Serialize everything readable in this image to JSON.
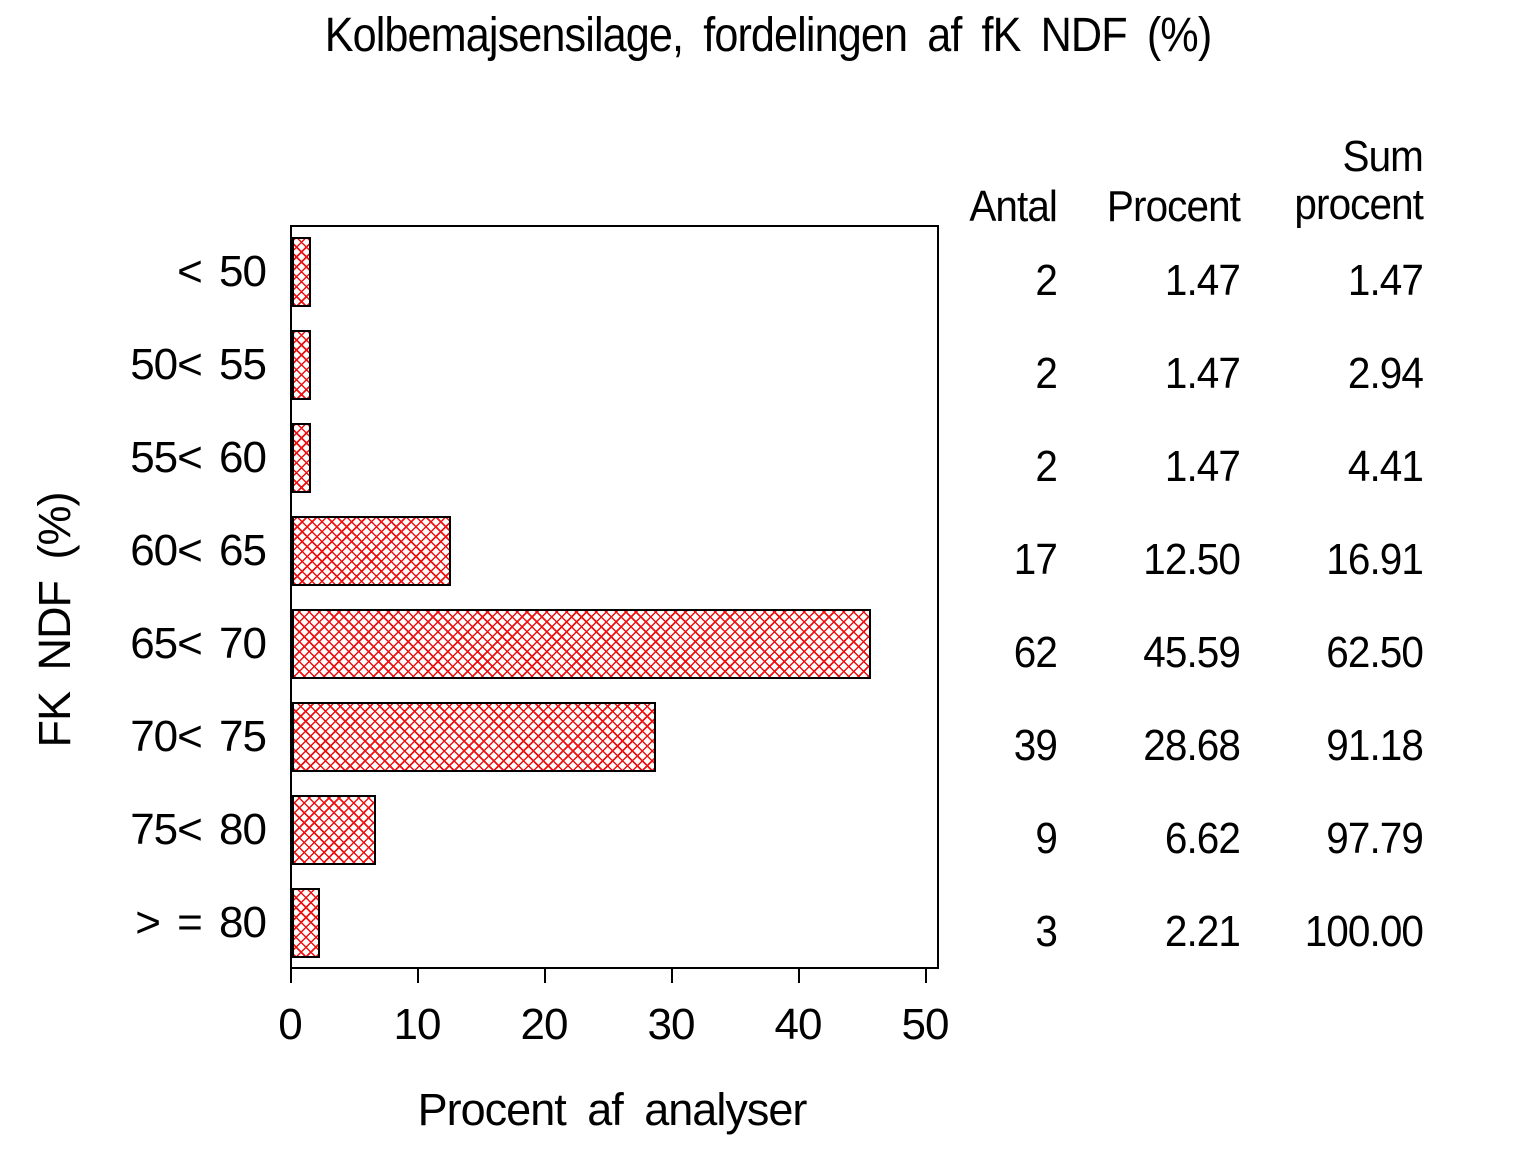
{
  "title": "Kolbemajsensilage, fordelingen af fK NDF (%)",
  "chart_data": {
    "type": "bar",
    "orientation": "horizontal",
    "title": "Kolbemajsensilage, fordelingen af fK NDF (%)",
    "xlabel": "Procent af analyser",
    "ylabel": "FK NDF (%)",
    "xlim": [
      0,
      50
    ],
    "x_ticks": [
      "0",
      "10",
      "20",
      "30",
      "40",
      "50"
    ],
    "grid": false,
    "legend": "none",
    "bar_fill_style": "diagonal-crosshatch",
    "bar_hatch_color": "#ee1111",
    "bar_border_color": "#000000",
    "categories": [
      "< 50",
      "50< 55",
      "55< 60",
      "60< 65",
      "65< 70",
      "70< 75",
      "75< 80",
      "> = 80"
    ],
    "values": [
      1.47,
      1.47,
      1.47,
      12.5,
      45.59,
      28.68,
      6.62,
      2.21
    ]
  },
  "stats_table": {
    "header_antal": "Antal",
    "header_procent": "Procent",
    "header_sum_line1": "Sum",
    "header_sum_line2": "procent",
    "rows": [
      {
        "antal": "2",
        "procent": "1.47",
        "sum": "1.47"
      },
      {
        "antal": "2",
        "procent": "1.47",
        "sum": "2.94"
      },
      {
        "antal": "2",
        "procent": "1.47",
        "sum": "4.41"
      },
      {
        "antal": "17",
        "procent": "12.50",
        "sum": "16.91"
      },
      {
        "antal": "62",
        "procent": "45.59",
        "sum": "62.50"
      },
      {
        "antal": "39",
        "procent": "28.68",
        "sum": "91.18"
      },
      {
        "antal": "9",
        "procent": "6.62",
        "sum": "97.79"
      },
      {
        "antal": "3",
        "procent": "2.21",
        "sum": "100.00"
      }
    ]
  },
  "colors": {
    "background": "#ffffff",
    "text": "#000000",
    "hatch_red": "#ee1111",
    "frame": "#000000"
  }
}
